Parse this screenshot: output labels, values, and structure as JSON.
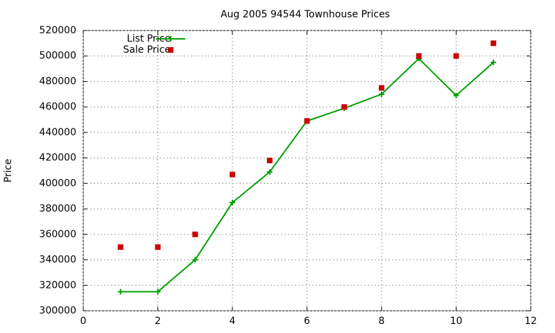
{
  "chart_data": {
    "type": "line",
    "title": "Aug 2005 94544 Townhouse Prices",
    "y_label": "Price",
    "x": [
      1,
      2,
      3,
      4,
      5,
      6,
      7,
      8,
      9,
      10,
      11
    ],
    "series": [
      {
        "name": "List Price",
        "color": "#00a000",
        "style": "linespoints",
        "values": [
          315000,
          315000,
          340000,
          385000,
          409000,
          449000,
          459000,
          470000,
          498000,
          469000,
          495000
        ]
      },
      {
        "name": "Sale Price",
        "color": "#cc0000",
        "style": "points",
        "values": [
          350000,
          350000,
          360000,
          407000,
          418000,
          449000,
          460000,
          475000,
          500000,
          500000,
          510000
        ]
      }
    ],
    "xlim": [
      0,
      12
    ],
    "xticks": [
      0,
      2,
      4,
      6,
      8,
      10,
      12
    ],
    "ylim": [
      300000,
      520000
    ],
    "yticks": [
      300000,
      320000,
      340000,
      360000,
      380000,
      400000,
      420000,
      440000,
      460000,
      480000,
      500000,
      520000
    ],
    "grid": true,
    "legend": "top-left"
  }
}
